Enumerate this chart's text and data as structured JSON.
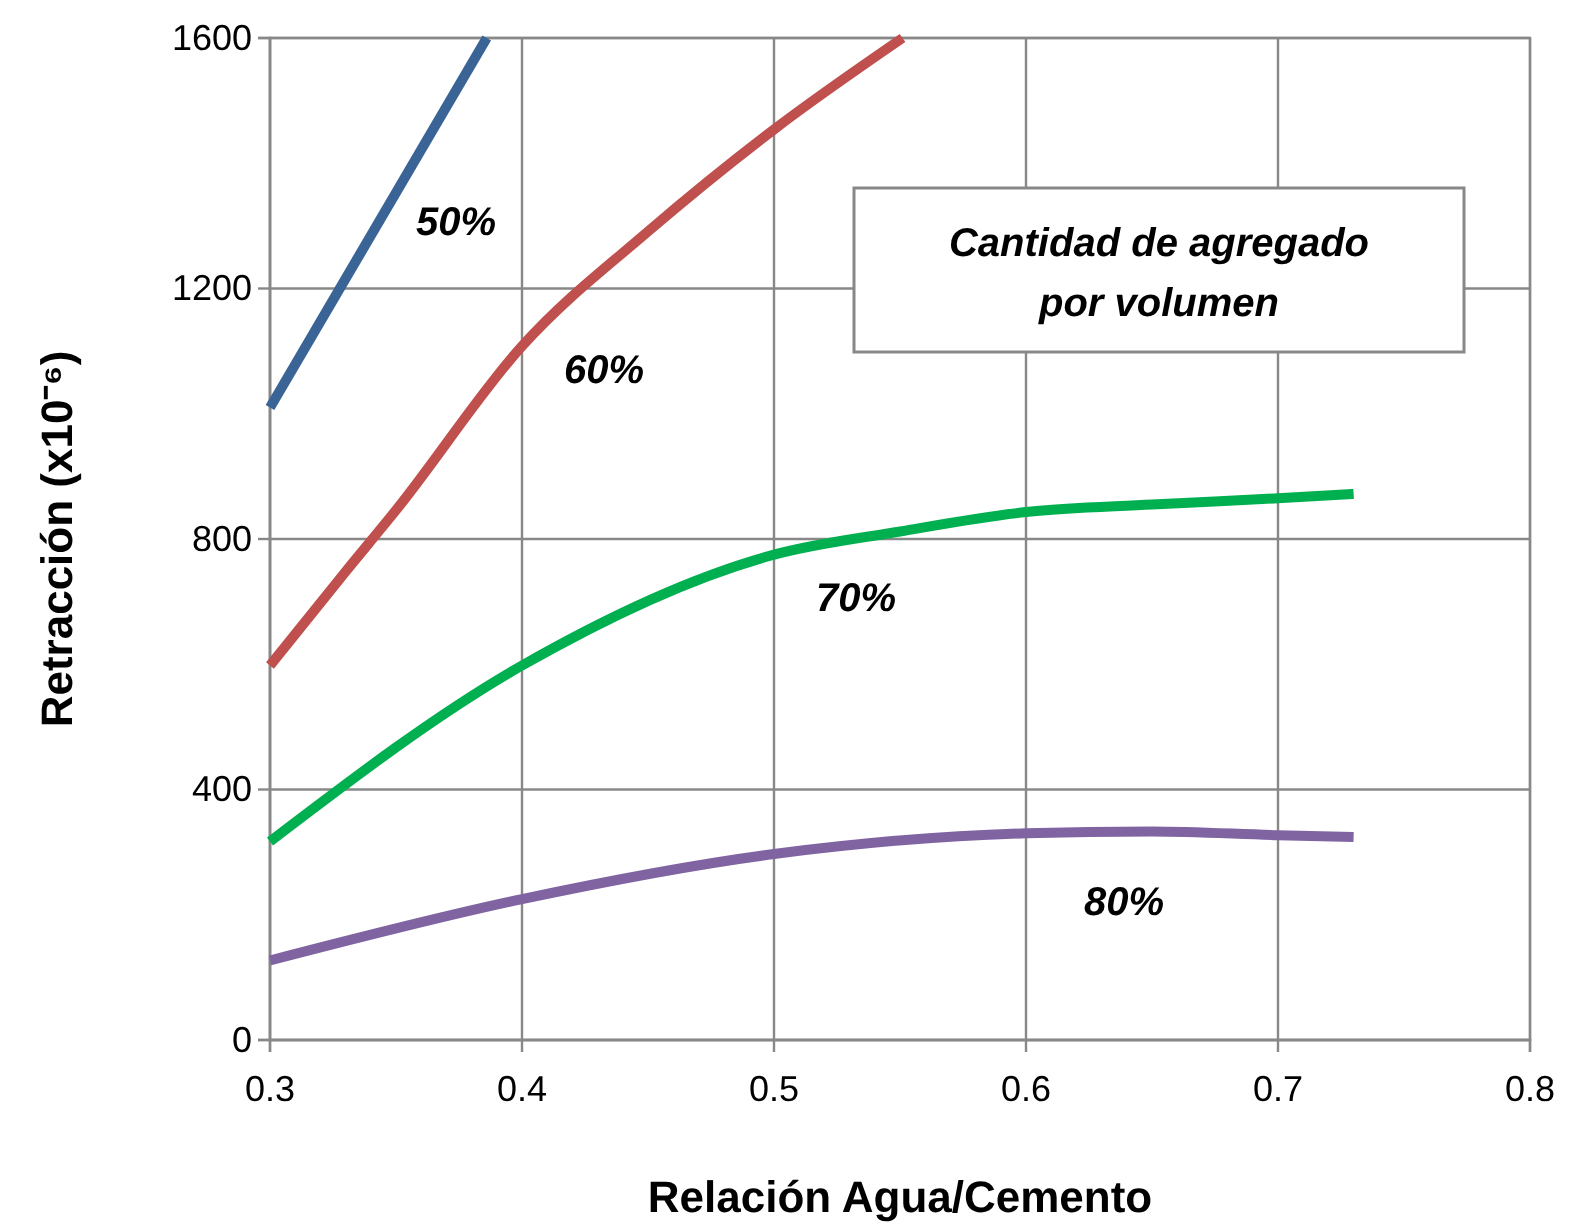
{
  "chart_data": {
    "type": "line",
    "xlabel": "Relación Agua/Cemento",
    "ylabel": "Retracción (x10⁻⁶)",
    "xlim": [
      0.3,
      0.8
    ],
    "xticks": [
      0.3,
      0.4,
      0.5,
      0.6,
      0.7,
      0.8
    ],
    "ylim": [
      0,
      1600
    ],
    "yticks": [
      0,
      400,
      800,
      1200,
      1600
    ],
    "grid": true,
    "series": [
      {
        "name": "50%",
        "color": "#3a6496",
        "x": [
          0.3,
          0.386
        ],
        "values": [
          1010,
          1600
        ]
      },
      {
        "name": "60%",
        "color": "#c0504d",
        "x": [
          0.3,
          0.33,
          0.35,
          0.4,
          0.45,
          0.5,
          0.551
        ],
        "values": [
          598,
          748,
          846,
          1108,
          1291,
          1454,
          1600
        ]
      },
      {
        "name": "70%",
        "color": "#00b050",
        "x": [
          0.3,
          0.4,
          0.5,
          0.55,
          0.6,
          0.65,
          0.7,
          0.73
        ],
        "values": [
          317,
          598,
          775,
          812,
          843,
          855,
          865,
          872
        ]
      },
      {
        "name": "80%",
        "color": "#8064a2",
        "x": [
          0.3,
          0.4,
          0.5,
          0.6,
          0.65,
          0.7,
          0.73
        ],
        "values": [
          127,
          225,
          297,
          330,
          333,
          327,
          324
        ]
      }
    ],
    "annotations": [
      "Cantidad de agregado por volumen"
    ]
  }
}
